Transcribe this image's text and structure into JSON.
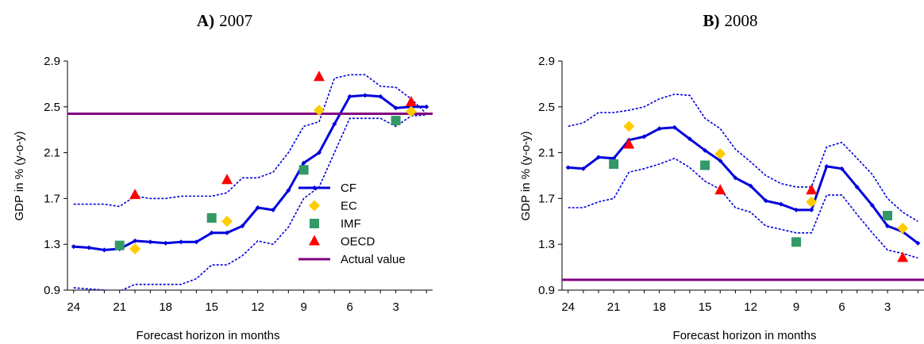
{
  "chart_data": [
    {
      "type": "line",
      "panel_label": "A)",
      "title": "2007",
      "xlabel": "Forecast horizon in months",
      "ylabel": "GDP in % (y-o-y)",
      "x_reversed": true,
      "x_ticks": [
        24,
        21,
        18,
        15,
        12,
        9,
        6,
        3
      ],
      "x_tick_labels": [
        "24",
        "21",
        "18",
        "15",
        "12",
        "9",
        "6",
        "3"
      ],
      "xlim": [
        24.4,
        0.6
      ],
      "y_ticks": [
        0.9,
        1.3,
        1.7,
        2.1,
        2.5,
        2.9
      ],
      "y_tick_labels": [
        "0.9",
        "1.3",
        "1.7",
        "2.1",
        "2.5",
        "2.9"
      ],
      "ylim": [
        0.9,
        2.9
      ],
      "grid": false,
      "legend": {
        "placement": "bottom-right",
        "entries": [
          "CF",
          "EC",
          "IMF",
          "OECD",
          "Actual value"
        ]
      },
      "series": [
        {
          "name": "CF",
          "style": "line-markers",
          "color": "#0000dd",
          "x": [
            24,
            23,
            22,
            21,
            20,
            19,
            18,
            17,
            16,
            15,
            14,
            13,
            12,
            11,
            10,
            9,
            8,
            7,
            6,
            5,
            4,
            3,
            2,
            1
          ],
          "y": [
            1.28,
            1.27,
            1.25,
            1.26,
            1.33,
            1.32,
            1.31,
            1.32,
            1.32,
            1.4,
            1.4,
            1.46,
            1.62,
            1.6,
            1.77,
            2.01,
            2.1,
            2.35,
            2.59,
            2.6,
            2.59,
            2.49,
            2.5,
            2.5
          ]
        },
        {
          "name": "CF band upper",
          "style": "dotted",
          "color": "#0000dd",
          "x": [
            24,
            22,
            21,
            20,
            19,
            18,
            17,
            16,
            15,
            14,
            13,
            12,
            11,
            10,
            9,
            8,
            7,
            6,
            5,
            4,
            3,
            2,
            1
          ],
          "y": [
            1.65,
            1.65,
            1.63,
            1.72,
            1.7,
            1.7,
            1.72,
            1.72,
            1.72,
            1.75,
            1.88,
            1.88,
            1.93,
            2.1,
            2.33,
            2.37,
            2.75,
            2.78,
            2.78,
            2.68,
            2.67,
            2.57,
            2.44
          ]
        },
        {
          "name": "CF band lower",
          "style": "dotted",
          "color": "#0000dd",
          "x": [
            24,
            22,
            21,
            20,
            19,
            18,
            17,
            16,
            15,
            14,
            13,
            12,
            11,
            10,
            9,
            8,
            7,
            6,
            5,
            4,
            3,
            2,
            1
          ],
          "y": [
            0.92,
            0.9,
            0.89,
            0.95,
            0.95,
            0.95,
            0.95,
            1.0,
            1.12,
            1.12,
            1.2,
            1.33,
            1.3,
            1.45,
            1.7,
            1.8,
            2.1,
            2.4,
            2.4,
            2.4,
            2.33,
            2.42,
            2.43
          ]
        },
        {
          "name": "EC",
          "style": "diamond",
          "color": "#ffcc00",
          "x": [
            20,
            14,
            8,
            2
          ],
          "y": [
            1.26,
            1.5,
            2.47,
            2.46
          ]
        },
        {
          "name": "IMF",
          "style": "square",
          "color": "#339966",
          "x": [
            21,
            15,
            9,
            3
          ],
          "y": [
            1.29,
            1.53,
            1.95,
            2.38
          ]
        },
        {
          "name": "OECD",
          "style": "triangle",
          "color": "#ff0000",
          "x": [
            20,
            14,
            8,
            2
          ],
          "y": [
            1.73,
            1.86,
            2.76,
            2.54
          ]
        },
        {
          "name": "Actual value",
          "style": "hline",
          "color": "#800080",
          "y": 2.44
        }
      ]
    },
    {
      "type": "line",
      "panel_label": "B)",
      "title": "2008",
      "xlabel": "Forecast horizon in months",
      "ylabel": "GDP in % (y-o-y)",
      "x_reversed": true,
      "x_ticks": [
        24,
        21,
        18,
        15,
        12,
        9,
        6,
        3
      ],
      "x_tick_labels": [
        "24",
        "21",
        "18",
        "15",
        "12",
        "9",
        "6",
        "3"
      ],
      "xlim": [
        24.4,
        0.6
      ],
      "y_ticks": [
        0.9,
        1.3,
        1.7,
        2.1,
        2.5,
        2.9
      ],
      "y_tick_labels": [
        "0.9",
        "1.3",
        "1.7",
        "2.1",
        "2.5",
        "2.9"
      ],
      "ylim": [
        0.9,
        2.9
      ],
      "grid": false,
      "series": [
        {
          "name": "CF",
          "style": "line-markers",
          "color": "#0000dd",
          "x": [
            24,
            23,
            22,
            21,
            20,
            19,
            18,
            17,
            16,
            15,
            14,
            13,
            12,
            11,
            10,
            9,
            8,
            7,
            6,
            5,
            4,
            3,
            2,
            1
          ],
          "y": [
            1.97,
            1.96,
            2.06,
            2.05,
            2.21,
            2.24,
            2.31,
            2.32,
            2.22,
            2.12,
            2.03,
            1.88,
            1.81,
            1.68,
            1.65,
            1.6,
            1.6,
            1.98,
            1.96,
            1.8,
            1.64,
            1.46,
            1.41,
            1.31
          ]
        },
        {
          "name": "CF band upper",
          "style": "dotted",
          "color": "#0000dd",
          "x": [
            24,
            23,
            22,
            21,
            20,
            19,
            18,
            17,
            16,
            15,
            14,
            13,
            12,
            11,
            10,
            9,
            8,
            7,
            6,
            5,
            4,
            3,
            2,
            1
          ],
          "y": [
            2.33,
            2.36,
            2.45,
            2.45,
            2.47,
            2.5,
            2.57,
            2.61,
            2.6,
            2.4,
            2.31,
            2.13,
            2.02,
            1.9,
            1.83,
            1.8,
            1.8,
            2.15,
            2.19,
            2.05,
            1.91,
            1.7,
            1.58,
            1.5
          ]
        },
        {
          "name": "CF band lower",
          "style": "dotted",
          "color": "#0000dd",
          "x": [
            24,
            23,
            22,
            21,
            20,
            19,
            18,
            17,
            16,
            15,
            14,
            13,
            12,
            11,
            10,
            9,
            8,
            7,
            6,
            5,
            4,
            3,
            2,
            1
          ],
          "y": [
            1.62,
            1.62,
            1.67,
            1.7,
            1.93,
            1.96,
            2.0,
            2.05,
            1.97,
            1.85,
            1.78,
            1.62,
            1.58,
            1.46,
            1.43,
            1.4,
            1.4,
            1.73,
            1.73,
            1.56,
            1.4,
            1.25,
            1.22,
            1.18
          ]
        },
        {
          "name": "EC",
          "style": "diamond",
          "color": "#ffcc00",
          "x": [
            20,
            14,
            8,
            2
          ],
          "y": [
            2.33,
            2.09,
            1.67,
            1.44
          ]
        },
        {
          "name": "IMF",
          "style": "square",
          "color": "#339966",
          "x": [
            21,
            15,
            9,
            3
          ],
          "y": [
            2.0,
            1.99,
            1.32,
            1.55
          ]
        },
        {
          "name": "OECD",
          "style": "triangle",
          "color": "#ff0000",
          "x": [
            20,
            14,
            8,
            2
          ],
          "y": [
            2.17,
            1.77,
            1.77,
            1.18
          ]
        },
        {
          "name": "Actual value",
          "style": "hline",
          "color": "#800080",
          "y": 0.99
        }
      ]
    }
  ]
}
